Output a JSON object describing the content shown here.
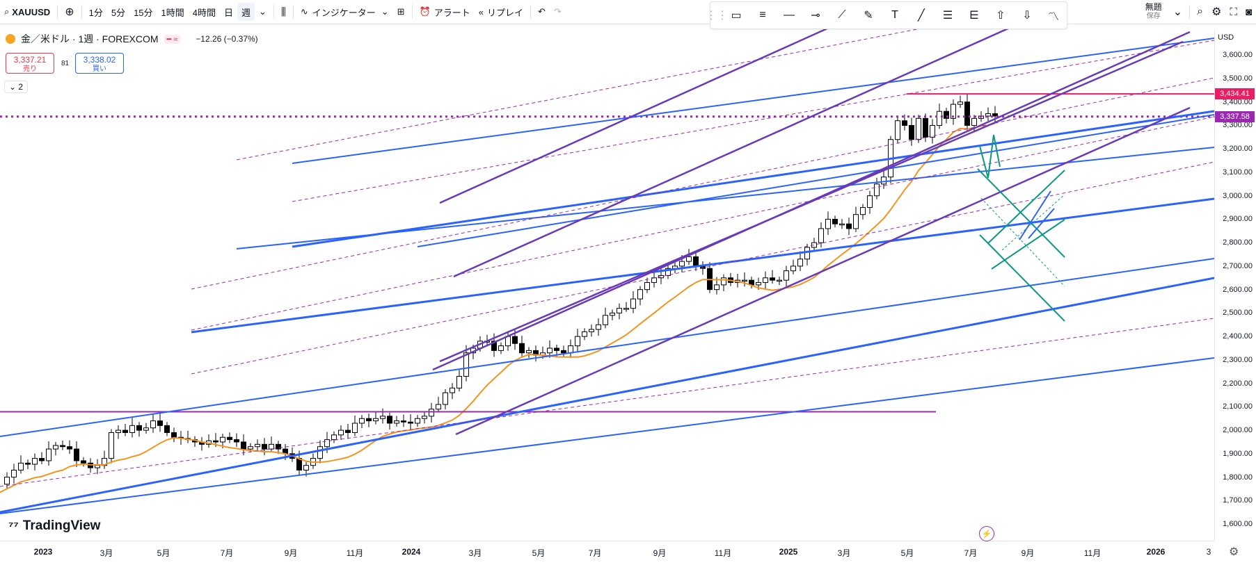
{
  "toolbar": {
    "symbol": "XAUUSD",
    "intervals": [
      "1分",
      "5分",
      "15分",
      "1時間",
      "4時間",
      "日",
      "週"
    ],
    "active_interval": "週",
    "indicators_label": "インジケーター",
    "alert_label": "アラート",
    "replay_label": "リプレイ",
    "layout_name": "無題",
    "layout_sub": "保存"
  },
  "legend": {
    "title": "金／米ドル · 1週 · FOREXCOM",
    "change": "−12.26 (−0.37%)",
    "sell_price": "3,337.21",
    "sell_label": "売り",
    "spread": "81",
    "buy_price": "3,338.02",
    "buy_label": "買い",
    "collapse_count": "2"
  },
  "price_axis": {
    "currency": "USD",
    "labels": [
      "3,600.00",
      "3,500.00",
      "3,400.00",
      "3,300.00",
      "3,200.00",
      "3,100.00",
      "3,000.00",
      "2,900.00",
      "2,800.00",
      "2,700.00",
      "2,600.00",
      "2,500.00",
      "2,400.00",
      "2,300.00",
      "2,200.00",
      "2,100.00",
      "2,000.00",
      "1,900.00",
      "1,800.00",
      "1,700.00",
      "1,600.00"
    ],
    "tag_high": "3,434.41",
    "tag_last": "3,337.58"
  },
  "time_axis": {
    "labels": [
      {
        "text": "2023",
        "bold": true
      },
      {
        "text": "3月",
        "bold": false
      },
      {
        "text": "5月",
        "bold": false
      },
      {
        "text": "7月",
        "bold": false
      },
      {
        "text": "9月",
        "bold": false
      },
      {
        "text": "11月",
        "bold": false
      },
      {
        "text": "2024",
        "bold": true
      },
      {
        "text": "3月",
        "bold": false
      },
      {
        "text": "5月",
        "bold": false
      },
      {
        "text": "7月",
        "bold": false
      },
      {
        "text": "9月",
        "bold": false
      },
      {
        "text": "11月",
        "bold": false
      },
      {
        "text": "2025",
        "bold": true
      },
      {
        "text": "3月",
        "bold": false
      },
      {
        "text": "5月",
        "bold": false
      },
      {
        "text": "7月",
        "bold": false
      },
      {
        "text": "9月",
        "bold": false
      },
      {
        "text": "11月",
        "bold": false
      },
      {
        "text": "2026",
        "bold": true
      },
      {
        "text": "3",
        "bold": false
      }
    ]
  },
  "watermark": "TradingView",
  "colors": {
    "up": "#ffffff",
    "down": "#000000",
    "ma": "#f7931a",
    "trend_blue": "#2962ff",
    "channel_purple": "#673ab7",
    "dashed_purple": "#9c27b0",
    "green": "#089981",
    "high_line": "#e91e63"
  }
}
